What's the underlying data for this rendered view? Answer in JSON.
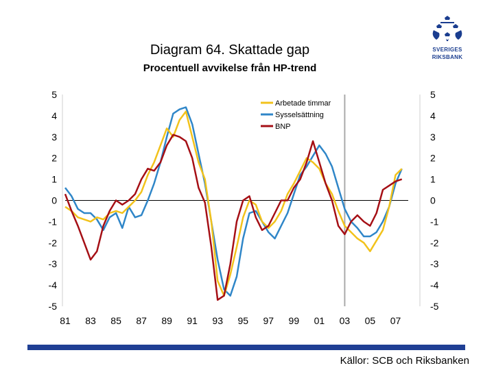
{
  "header": {
    "title": "Diagram 64. Skattade gap",
    "subtitle": "Procentuell avvikelse från HP-trend"
  },
  "logo": {
    "name": "sveriges-riksbank-logo",
    "line1": "SVERIGES",
    "line2": "RIKSBANK"
  },
  "footer": {
    "source": "Källor: SCB och Riksbanken"
  },
  "colors": {
    "arbetade": "#f2c21b",
    "syssel": "#2f86c8",
    "bnp": "#a50f15",
    "brand": "#1f3f94"
  },
  "chart_data": {
    "type": "line",
    "title": "Diagram 64. Skattade gap",
    "ylabel": "Procentuell avvikelse från HP-trend",
    "xlim": [
      1981,
      2008
    ],
    "ylim": [
      -5,
      5
    ],
    "y_ticks": [
      "5",
      "4",
      "3",
      "2",
      "1",
      "0",
      "-1",
      "-2",
      "-3",
      "-4",
      "-5"
    ],
    "y_tick_values": [
      5,
      4,
      3,
      2,
      1,
      0,
      -1,
      -2,
      -3,
      -4,
      -5
    ],
    "x_ticks": [
      "81",
      "83",
      "85",
      "87",
      "89",
      "91",
      "93",
      "95",
      "97",
      "99",
      "01",
      "03",
      "05",
      "07"
    ],
    "x_tick_values": [
      1981,
      1983,
      1985,
      1987,
      1989,
      1991,
      1993,
      1995,
      1997,
      1999,
      2001,
      2003,
      2005,
      2007
    ],
    "forecast_start": 2003,
    "legend": {
      "position": "top-center"
    },
    "series": [
      {
        "name": "Arbetade timmar",
        "key": "arbetade",
        "color": "#f2c21b",
        "x": [
          1981,
          1981.5,
          1982,
          1982.5,
          1983,
          1983.5,
          1984,
          1984.5,
          1985,
          1985.5,
          1986,
          1986.5,
          1987,
          1987.5,
          1988,
          1988.5,
          1989,
          1989.5,
          1990,
          1990.5,
          1991,
          1991.5,
          1992,
          1992.5,
          1993,
          1993.5,
          1994,
          1994.5,
          1995,
          1995.5,
          1996,
          1996.5,
          1997,
          1997.5,
          1998,
          1998.5,
          1999,
          1999.5,
          2000,
          2000.5,
          2001,
          2001.5,
          2002,
          2002.5,
          2003,
          2003.5,
          2004,
          2004.5,
          2005,
          2005.5,
          2006,
          2006.5,
          2007,
          2007.5
        ],
        "y": [
          -0.3,
          -0.5,
          -0.8,
          -0.9,
          -1.0,
          -0.8,
          -0.9,
          -0.6,
          -0.5,
          -0.6,
          -0.3,
          0.0,
          0.4,
          1.2,
          1.8,
          2.6,
          3.4,
          3.0,
          3.8,
          4.2,
          3.0,
          1.8,
          1.0,
          -1.0,
          -3.8,
          -4.5,
          -3.5,
          -2.2,
          -0.8,
          0.0,
          -0.2,
          -1.0,
          -1.3,
          -1.0,
          -0.5,
          0.3,
          0.8,
          1.4,
          2.0,
          1.8,
          1.5,
          0.8,
          0.3,
          -0.5,
          -1.2,
          -1.5,
          -1.8,
          -2.0,
          -2.4,
          -1.9,
          -1.4,
          -0.3,
          1.2,
          1.5
        ]
      },
      {
        "name": "Sysselsättning",
        "key": "syssel",
        "color": "#2f86c8",
        "x": [
          1981,
          1981.5,
          1982,
          1982.5,
          1983,
          1983.5,
          1984,
          1984.5,
          1985,
          1985.5,
          1986,
          1986.5,
          1987,
          1987.5,
          1988,
          1988.5,
          1989,
          1989.5,
          1990,
          1990.5,
          1991,
          1991.5,
          1992,
          1992.5,
          1993,
          1993.5,
          1994,
          1994.5,
          1995,
          1995.5,
          1996,
          1996.5,
          1997,
          1997.5,
          1998,
          1998.5,
          1999,
          1999.5,
          2000,
          2000.5,
          2001,
          2001.5,
          2002,
          2002.5,
          2003,
          2003.5,
          2004,
          2004.5,
          2005,
          2005.5,
          2006,
          2006.5,
          2007,
          2007.5
        ],
        "y": [
          0.6,
          0.2,
          -0.4,
          -0.6,
          -0.6,
          -0.9,
          -1.4,
          -0.8,
          -0.6,
          -1.3,
          -0.3,
          -0.8,
          -0.7,
          0.0,
          0.8,
          1.8,
          3.0,
          4.1,
          4.3,
          4.4,
          3.6,
          2.2,
          0.8,
          -1.0,
          -2.8,
          -4.2,
          -4.5,
          -3.6,
          -1.8,
          -0.6,
          -0.5,
          -1.0,
          -1.5,
          -1.8,
          -1.2,
          -0.6,
          0.3,
          1.2,
          1.6,
          2.1,
          2.6,
          2.2,
          1.6,
          0.6,
          -0.4,
          -1.0,
          -1.3,
          -1.7,
          -1.7,
          -1.5,
          -1.0,
          -0.3,
          0.8,
          1.5
        ]
      },
      {
        "name": "BNP",
        "key": "bnp",
        "color": "#a50f15",
        "x": [
          1981,
          1981.5,
          1982,
          1982.5,
          1983,
          1983.5,
          1984,
          1984.5,
          1985,
          1985.5,
          1986,
          1986.5,
          1987,
          1987.5,
          1988,
          1988.5,
          1989,
          1989.5,
          1990,
          1990.5,
          1991,
          1991.5,
          1992,
          1992.5,
          1993,
          1993.5,
          1994,
          1994.5,
          1995,
          1995.5,
          1996,
          1996.5,
          1997,
          1997.5,
          1998,
          1998.5,
          1999,
          1999.5,
          2000,
          2000.5,
          2001,
          2001.5,
          2002,
          2002.5,
          2003,
          2003.5,
          2004,
          2004.5,
          2005,
          2005.5,
          2006,
          2006.5,
          2007,
          2007.5
        ],
        "y": [
          0.3,
          -0.5,
          -1.2,
          -2.0,
          -2.8,
          -2.4,
          -1.2,
          -0.5,
          0.0,
          -0.2,
          0.0,
          0.3,
          1.0,
          1.5,
          1.4,
          1.8,
          2.6,
          3.1,
          3.0,
          2.8,
          2.0,
          0.6,
          -0.1,
          -2.2,
          -4.7,
          -4.5,
          -3.0,
          -1.0,
          0.0,
          0.2,
          -0.8,
          -1.4,
          -1.2,
          -0.6,
          0.0,
          0.0,
          0.6,
          1.0,
          1.8,
          2.8,
          1.8,
          0.8,
          0.0,
          -1.2,
          -1.6,
          -1.0,
          -0.7,
          -1.0,
          -1.2,
          -0.6,
          0.5,
          0.7,
          0.9,
          1.0
        ]
      }
    ]
  }
}
